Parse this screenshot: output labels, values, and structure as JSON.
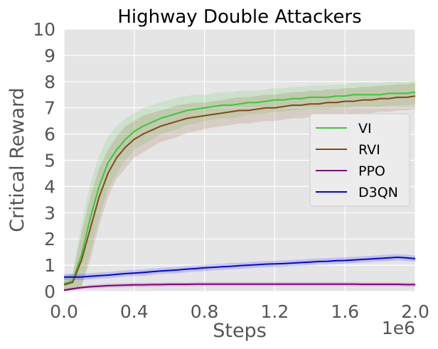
{
  "chart_data": {
    "type": "line",
    "title": "Highway Double Attackers",
    "xlabel": "Steps",
    "ylabel": "Critical Reward",
    "x_offset_text": "1e6",
    "xlim": [
      0,
      2000000
    ],
    "ylim": [
      0,
      10
    ],
    "x_ticks": [
      0,
      400000,
      800000,
      1200000,
      1600000,
      2000000
    ],
    "x_tick_labels": [
      "0.0",
      "0.4",
      "0.8",
      "1.2",
      "1.6",
      "2.0"
    ],
    "y_ticks": [
      0,
      1,
      2,
      3,
      4,
      5,
      6,
      7,
      8,
      9,
      10
    ],
    "y_tick_labels": [
      "0",
      "1",
      "2",
      "3",
      "4",
      "5",
      "6",
      "7",
      "8",
      "9",
      "10"
    ],
    "grid": true,
    "legend_position": "center-right",
    "x": [
      0,
      50000,
      100000,
      150000,
      200000,
      250000,
      300000,
      350000,
      400000,
      450000,
      500000,
      550000,
      600000,
      650000,
      700000,
      750000,
      800000,
      850000,
      900000,
      950000,
      1000000,
      1050000,
      1100000,
      1150000,
      1200000,
      1250000,
      1300000,
      1350000,
      1400000,
      1450000,
      1500000,
      1550000,
      1600000,
      1650000,
      1700000,
      1750000,
      1800000,
      1850000,
      1900000,
      1950000,
      2000000
    ],
    "series": [
      {
        "name": "VI",
        "color": "#33cc33",
        "values": [
          0.3,
          0.4,
          1.4,
          2.8,
          4.0,
          4.9,
          5.4,
          5.8,
          6.1,
          6.3,
          6.45,
          6.6,
          6.7,
          6.8,
          6.9,
          6.95,
          7.0,
          7.05,
          7.1,
          7.1,
          7.15,
          7.2,
          7.2,
          7.25,
          7.3,
          7.3,
          7.35,
          7.35,
          7.4,
          7.4,
          7.4,
          7.45,
          7.45,
          7.5,
          7.5,
          7.5,
          7.5,
          7.55,
          7.55,
          7.55,
          7.6
        ],
        "band": [
          0.3,
          0.3,
          1.2,
          1.3,
          1.2,
          1.0,
          0.9,
          0.8,
          0.7,
          0.7,
          0.65,
          0.6,
          0.6,
          0.6,
          0.55,
          0.55,
          0.5,
          0.5,
          0.5,
          0.5,
          0.5,
          0.45,
          0.45,
          0.45,
          0.45,
          0.45,
          0.45,
          0.45,
          0.45,
          0.45,
          0.45,
          0.45,
          0.45,
          0.45,
          0.45,
          0.45,
          0.45,
          0.45,
          0.45,
          0.45,
          0.45
        ]
      },
      {
        "name": "RVI",
        "color": "#8b4513",
        "values": [
          0.25,
          0.35,
          1.2,
          2.4,
          3.6,
          4.5,
          5.1,
          5.5,
          5.8,
          6.0,
          6.15,
          6.3,
          6.4,
          6.5,
          6.6,
          6.65,
          6.7,
          6.75,
          6.8,
          6.85,
          6.9,
          6.9,
          6.95,
          7.0,
          7.0,
          7.05,
          7.1,
          7.1,
          7.15,
          7.15,
          7.2,
          7.2,
          7.25,
          7.25,
          7.3,
          7.3,
          7.35,
          7.35,
          7.4,
          7.4,
          7.45
        ],
        "band": [
          0.3,
          0.3,
          1.0,
          1.2,
          1.1,
          0.9,
          0.8,
          0.8,
          0.7,
          0.7,
          0.65,
          0.6,
          0.6,
          0.6,
          0.55,
          0.55,
          0.5,
          0.5,
          0.5,
          0.5,
          0.5,
          0.5,
          0.5,
          0.5,
          0.5,
          0.5,
          0.5,
          0.5,
          0.5,
          0.5,
          0.5,
          0.5,
          0.5,
          0.5,
          0.5,
          0.5,
          0.5,
          0.5,
          0.5,
          0.5,
          0.5
        ]
      },
      {
        "name": "PPO",
        "color": "#800080",
        "values": [
          0.05,
          0.1,
          0.15,
          0.18,
          0.2,
          0.22,
          0.23,
          0.24,
          0.25,
          0.25,
          0.26,
          0.26,
          0.27,
          0.27,
          0.27,
          0.28,
          0.28,
          0.28,
          0.28,
          0.28,
          0.28,
          0.28,
          0.28,
          0.28,
          0.28,
          0.28,
          0.28,
          0.28,
          0.28,
          0.28,
          0.28,
          0.28,
          0.28,
          0.28,
          0.27,
          0.27,
          0.27,
          0.27,
          0.27,
          0.26,
          0.26
        ],
        "band": [
          0.05,
          0.05,
          0.06,
          0.07,
          0.08,
          0.08,
          0.08,
          0.08,
          0.08,
          0.08,
          0.08,
          0.08,
          0.08,
          0.08,
          0.08,
          0.08,
          0.08,
          0.08,
          0.08,
          0.08,
          0.08,
          0.08,
          0.08,
          0.08,
          0.08,
          0.08,
          0.08,
          0.08,
          0.08,
          0.08,
          0.08,
          0.08,
          0.08,
          0.08,
          0.08,
          0.08,
          0.08,
          0.08,
          0.08,
          0.08,
          0.08
        ]
      },
      {
        "name": "D3QN",
        "color": "#0000ee",
        "values": [
          0.55,
          0.55,
          0.55,
          0.58,
          0.6,
          0.62,
          0.65,
          0.68,
          0.7,
          0.72,
          0.75,
          0.78,
          0.8,
          0.82,
          0.85,
          0.87,
          0.9,
          0.92,
          0.94,
          0.96,
          0.98,
          1.0,
          1.02,
          1.04,
          1.05,
          1.06,
          1.08,
          1.1,
          1.12,
          1.14,
          1.15,
          1.17,
          1.18,
          1.2,
          1.22,
          1.24,
          1.26,
          1.28,
          1.3,
          1.28,
          1.25
        ],
        "band": [
          0.12,
          0.12,
          0.12,
          0.12,
          0.12,
          0.12,
          0.12,
          0.12,
          0.12,
          0.12,
          0.12,
          0.12,
          0.12,
          0.12,
          0.12,
          0.12,
          0.12,
          0.12,
          0.12,
          0.12,
          0.12,
          0.12,
          0.12,
          0.12,
          0.12,
          0.12,
          0.12,
          0.12,
          0.12,
          0.12,
          0.12,
          0.12,
          0.12,
          0.12,
          0.12,
          0.12,
          0.12,
          0.12,
          0.12,
          0.12,
          0.12
        ]
      }
    ]
  }
}
